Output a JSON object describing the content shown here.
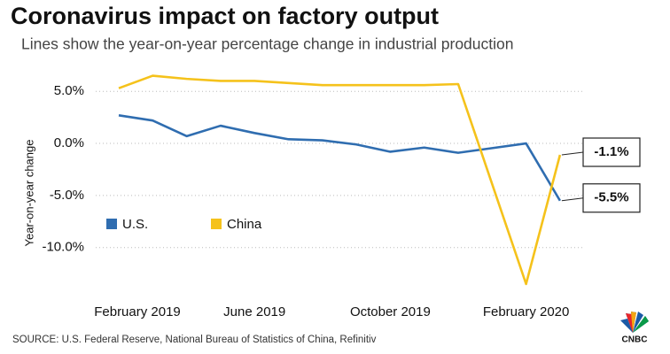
{
  "chart_data": {
    "type": "line",
    "title": "Coronavirus impact on factory output",
    "subtitle": "Lines show the year-on-year percentage change in industrial production",
    "y_label": "Year-on-year change",
    "source": "SOURCE: U.S. Federal Reserve, National Bureau of Statistics of China, Refinitiv",
    "logo": "CNBC",
    "categories": [
      "February 2019",
      null,
      null,
      null,
      "June 2019",
      null,
      null,
      null,
      "October 2019",
      null,
      null,
      null,
      "February 2020",
      null
    ],
    "series": [
      {
        "name": "U.S.",
        "color": "#2f6db0",
        "values": [
          2.7,
          2.2,
          0.7,
          1.7,
          1.0,
          0.4,
          0.3,
          -0.1,
          -0.8,
          -0.4,
          -0.9,
          -0.45,
          0.0,
          -5.5
        ],
        "value_labels": [
          null,
          null,
          null,
          null,
          null,
          null,
          null,
          null,
          null,
          null,
          null,
          null,
          null,
          "-5.5%"
        ]
      },
      {
        "name": "China",
        "color": "#f5c21b",
        "values": [
          5.3,
          6.5,
          6.2,
          6.0,
          6.0,
          5.8,
          5.6,
          5.6,
          5.6,
          5.6,
          5.7,
          -3.9,
          -13.5,
          -1.1
        ],
        "value_labels": [
          null,
          null,
          null,
          null,
          null,
          null,
          null,
          null,
          null,
          null,
          null,
          null,
          null,
          "-1.1%"
        ]
      }
    ],
    "ylim": [
      -14.7,
      7.4
    ],
    "yticks": [
      {
        "value": 5,
        "label": "5.0%"
      },
      {
        "value": 0,
        "label": "0.0%"
      },
      {
        "value": -5,
        "label": "-5.0%"
      },
      {
        "value": -10,
        "label": "-10.0%"
      }
    ],
    "grid": true
  }
}
